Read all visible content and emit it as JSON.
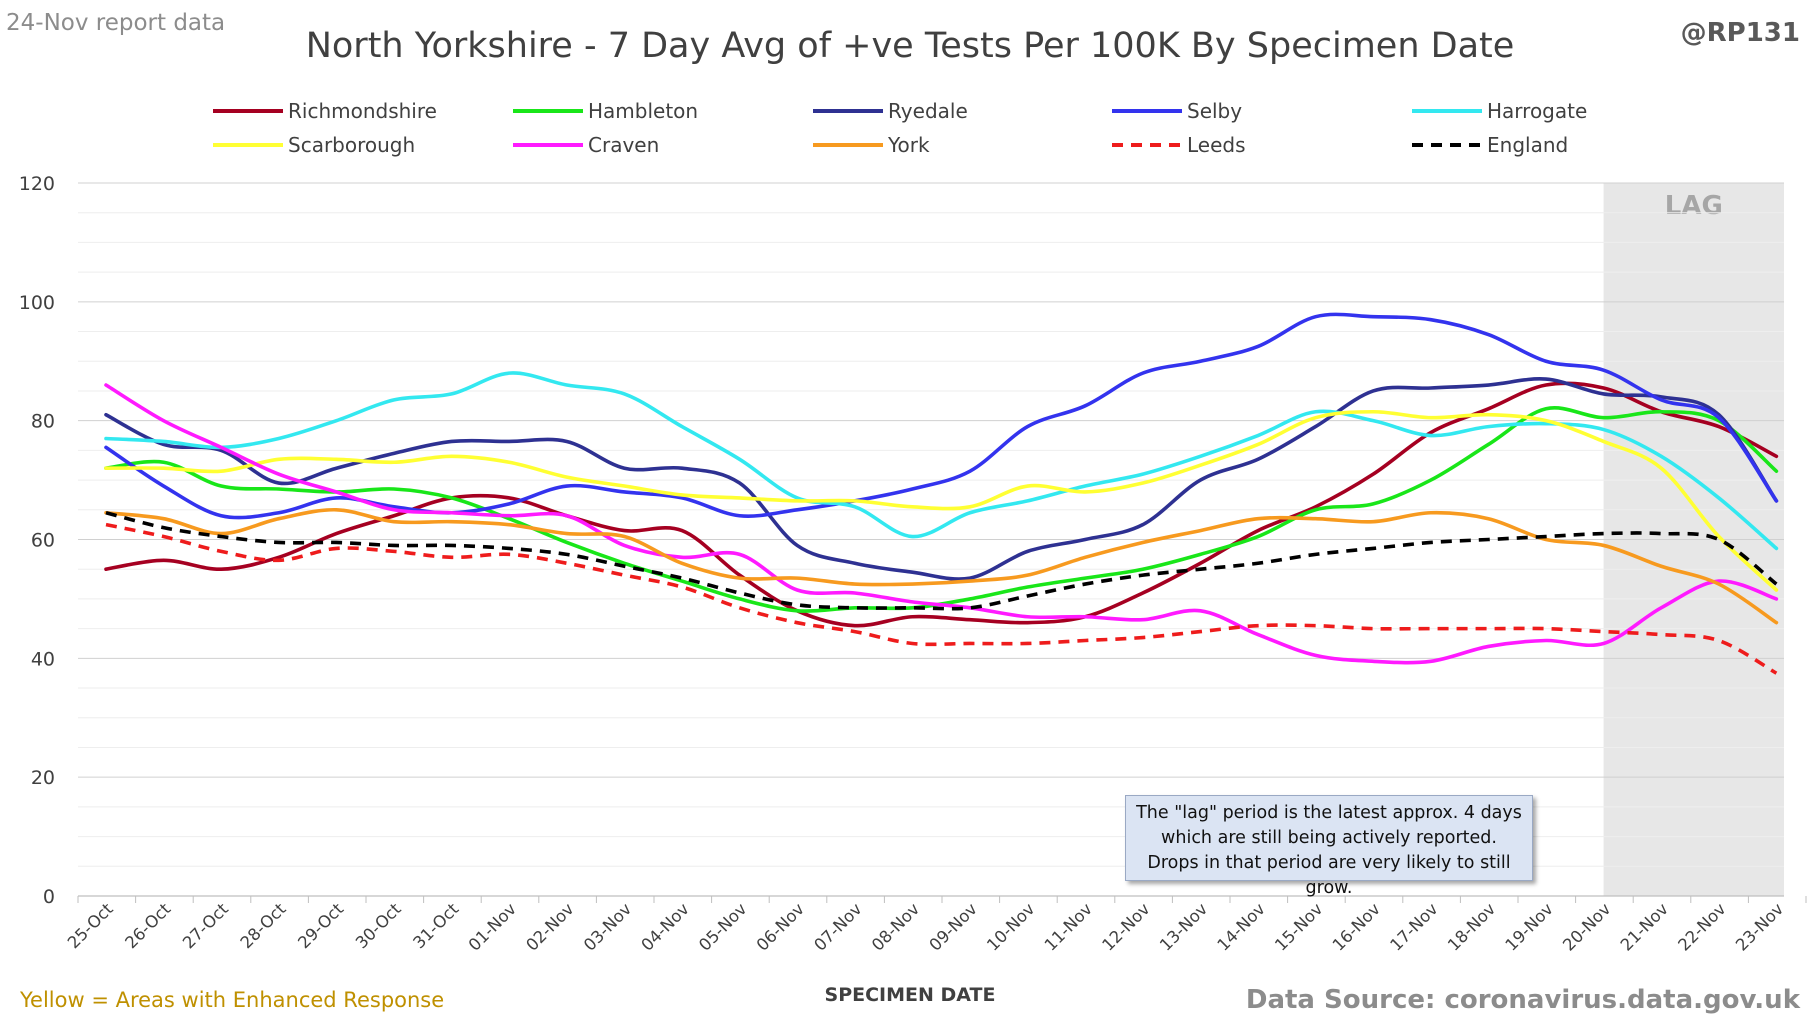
{
  "header": {
    "report_tag": "24-Nov report data",
    "author": "@RP131"
  },
  "footer": {
    "note_left": "Yellow = Areas with Enhanced Response",
    "source": "Data Source: coronavirus.data.gov.uk"
  },
  "annotation": {
    "lag_text": "The \"lag\" period is the latest approx. 4 days which are still being actively reported.  Drops in that period are very likely to still grow."
  },
  "chart_data": {
    "type": "line",
    "title": "North Yorkshire - 7 Day Avg of +ve Tests Per 100K By Specimen Date",
    "xlabel": "SPECIMEN DATE",
    "ylabel": "",
    "ylim": [
      0,
      120
    ],
    "yticks": [
      0,
      20,
      40,
      60,
      80,
      100,
      120
    ],
    "grid": true,
    "legend_position": "top",
    "categories": [
      "25-Oct",
      "26-Oct",
      "27-Oct",
      "28-Oct",
      "29-Oct",
      "30-Oct",
      "31-Oct",
      "01-Nov",
      "02-Nov",
      "03-Nov",
      "04-Nov",
      "05-Nov",
      "06-Nov",
      "07-Nov",
      "08-Nov",
      "09-Nov",
      "10-Nov",
      "11-Nov",
      "12-Nov",
      "13-Nov",
      "14-Nov",
      "15-Nov",
      "16-Nov",
      "17-Nov",
      "18-Nov",
      "19-Nov",
      "20-Nov",
      "21-Nov",
      "22-Nov",
      "23-Nov"
    ],
    "lag_region": {
      "label": "LAG",
      "start": "20-Nov",
      "end": "23-Nov",
      "color": "#e7e7e7"
    },
    "series": [
      {
        "name": "Richmondshire",
        "color": "#a50021",
        "style": "solid",
        "values": [
          55,
          56.5,
          55,
          57,
          61,
          64,
          67,
          67,
          64,
          61.5,
          61.5,
          54,
          48,
          45.5,
          47,
          46.5,
          46,
          47,
          51,
          56,
          61.5,
          65.5,
          71,
          78,
          82,
          86,
          85.5,
          81.5,
          79,
          74
        ]
      },
      {
        "name": "Hambleton",
        "color": "#19e619",
        "style": "solid",
        "values": [
          72,
          73,
          69,
          68.5,
          68,
          68.5,
          67,
          63.5,
          59.5,
          56,
          53,
          50,
          48,
          48.5,
          48.5,
          50,
          52,
          53.5,
          55,
          57.5,
          60.5,
          65,
          66,
          70,
          76,
          82,
          80.5,
          81.5,
          80,
          71.5
        ]
      },
      {
        "name": "Ryedale",
        "color": "#2e3192",
        "style": "solid",
        "values": [
          81,
          76,
          75,
          69.5,
          72,
          74.5,
          76.5,
          76.5,
          76.5,
          72,
          72,
          69.5,
          59,
          56,
          54.5,
          53.5,
          58,
          60,
          62.5,
          70,
          73.5,
          79,
          85,
          85.5,
          86,
          87,
          84.5,
          84,
          81,
          66.5
        ]
      },
      {
        "name": "Selby",
        "color": "#3333ee",
        "style": "solid",
        "values": [
          75.5,
          69,
          64,
          64.5,
          67,
          65.5,
          64.5,
          66,
          69,
          68,
          67,
          64,
          65,
          66.5,
          68.5,
          71.5,
          79,
          82.5,
          88,
          90,
          92.5,
          97.5,
          97.5,
          97,
          94.5,
          90,
          88.5,
          83.5,
          80.5,
          66.5
        ]
      },
      {
        "name": "Harrogate",
        "color": "#33e8f0",
        "style": "solid",
        "values": [
          77,
          76.5,
          75.5,
          77,
          80,
          83.5,
          84.5,
          88,
          86,
          84.5,
          79,
          73.5,
          67,
          65.5,
          60.5,
          64.5,
          66.5,
          69,
          71,
          74,
          77.5,
          81.5,
          80,
          77.5,
          79,
          79.5,
          78.5,
          74,
          67,
          58.5
        ]
      },
      {
        "name": "Scarborough",
        "color": "#ffff33",
        "style": "solid",
        "values": [
          72,
          72,
          71.5,
          73.5,
          73.5,
          73,
          74,
          73,
          70.5,
          69,
          67.5,
          67,
          66.5,
          66.5,
          65.5,
          65.5,
          69,
          68,
          69.5,
          72.5,
          76,
          80.5,
          81.5,
          80.5,
          81,
          80,
          76.5,
          72,
          60.5,
          51.5
        ]
      },
      {
        "name": "Craven",
        "color": "#ff1aff",
        "style": "solid",
        "values": [
          86,
          80,
          75.5,
          71,
          68,
          65,
          64.5,
          64,
          64,
          59,
          57,
          57.5,
          51.5,
          51,
          49.5,
          48.5,
          47,
          47,
          46.5,
          48,
          44,
          40.5,
          39.5,
          39.5,
          42,
          43,
          42.5,
          48.5,
          53,
          50
        ]
      },
      {
        "name": "York",
        "color": "#f79a1f",
        "style": "solid",
        "values": [
          64.5,
          63.5,
          61,
          63.5,
          65,
          63,
          63,
          62.5,
          61,
          60.5,
          56,
          53.5,
          53.5,
          52.5,
          52.5,
          53,
          54,
          57,
          59.5,
          61.5,
          63.5,
          63.5,
          63,
          64.5,
          63.5,
          60,
          59,
          55.5,
          52.5,
          46
        ]
      },
      {
        "name": "Leeds",
        "color": "#ee1c1c",
        "style": "dashed",
        "values": [
          62.5,
          60.5,
          58,
          56.5,
          58.5,
          58,
          57,
          57.5,
          56,
          54,
          52,
          48.5,
          46,
          44.5,
          42.5,
          42.5,
          42.5,
          43,
          43.5,
          44.5,
          45.5,
          45.5,
          45,
          45,
          45,
          45,
          44.5,
          44,
          43,
          37.5
        ]
      },
      {
        "name": "England",
        "color": "#000000",
        "style": "dashed",
        "values": [
          64.5,
          62,
          60.5,
          59.5,
          59.5,
          59,
          59,
          58.5,
          57.5,
          55.5,
          53.5,
          51,
          49,
          48.5,
          48.5,
          48.5,
          50.5,
          52.5,
          54,
          55,
          56,
          57.5,
          58.5,
          59.5,
          60,
          60.5,
          61,
          61,
          60,
          52.5
        ]
      }
    ]
  }
}
